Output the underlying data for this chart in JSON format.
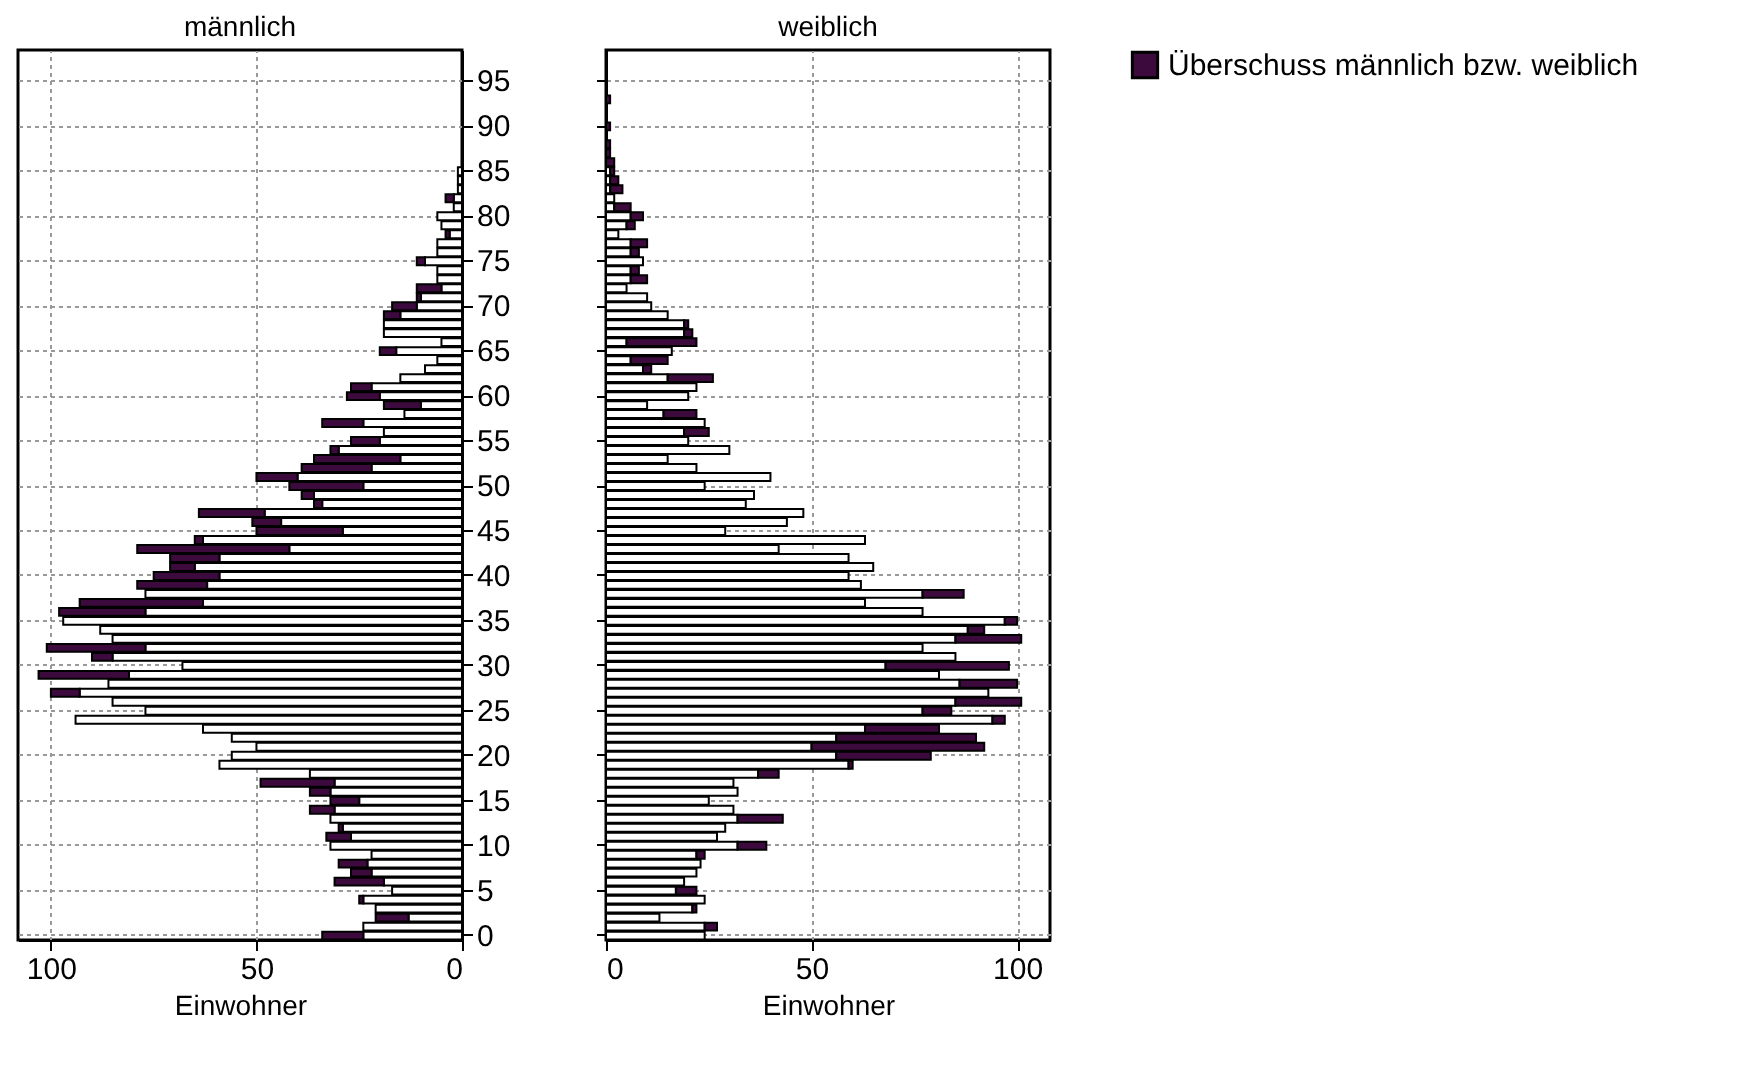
{
  "chart_data": [
    {
      "type": "bar",
      "orientation": "horizontal",
      "stacked": true,
      "title": "männlich",
      "xlabel": "Einwohner",
      "xlim": [
        108,
        0
      ],
      "xticks": [
        100,
        50,
        0
      ],
      "grid": true,
      "categories": [
        null,
        null,
        null,
        "95",
        null,
        null,
        null,
        null,
        "90",
        null,
        null,
        null,
        null,
        "85",
        null,
        null,
        null,
        null,
        "80",
        null,
        null,
        null,
        null,
        "75",
        null,
        null,
        null,
        null,
        "70",
        null,
        null,
        null,
        null,
        "65",
        null,
        null,
        null,
        null,
        "60",
        null,
        null,
        null,
        null,
        "55",
        null,
        null,
        null,
        null,
        "50",
        null,
        null,
        null,
        null,
        "45",
        null,
        null,
        null,
        null,
        "40",
        null,
        null,
        null,
        null,
        "35",
        null,
        null,
        null,
        null,
        "30",
        null,
        null,
        null,
        null,
        "25",
        null,
        null,
        null,
        null,
        "20",
        null,
        null,
        null,
        null,
        "15",
        null,
        null,
        null,
        null,
        "10",
        null,
        null,
        null,
        null,
        "5",
        null,
        null,
        null,
        null,
        "0"
      ],
      "series": [
        {
          "color": "#ffffff",
          "values": [
            null,
            null,
            null,
            null,
            null,
            null,
            null,
            null,
            null,
            null,
            null,
            null,
            null,
            1,
            1,
            1,
            2,
            2,
            6,
            5,
            3,
            6,
            6,
            9,
            6,
            6,
            5,
            10,
            11,
            15,
            19,
            19,
            5,
            16,
            6,
            9,
            15,
            22,
            20,
            10,
            14,
            24,
            19,
            20,
            30,
            15,
            22,
            40,
            24,
            36,
            34,
            48,
            44,
            29,
            63,
            42,
            59,
            65,
            59,
            62,
            77,
            63,
            77,
            97,
            88,
            85,
            77,
            85,
            68,
            81,
            86,
            93,
            85,
            77,
            94,
            63,
            56,
            50,
            56,
            59,
            37,
            31,
            32,
            25,
            31,
            32,
            29,
            27,
            32,
            22,
            23,
            22,
            19,
            17,
            24,
            21,
            13,
            24,
            24
          ]
        },
        {
          "color": "#3d0a3d",
          "values": [
            null,
            null,
            null,
            null,
            null,
            null,
            null,
            null,
            null,
            null,
            null,
            null,
            null,
            null,
            null,
            null,
            2,
            null,
            null,
            null,
            1,
            null,
            null,
            2,
            null,
            null,
            6,
            1,
            6,
            4,
            null,
            null,
            null,
            4,
            null,
            null,
            null,
            5,
            8,
            9,
            null,
            10,
            null,
            7,
            2,
            21,
            17,
            10,
            18,
            3,
            2,
            16,
            7,
            21,
            2,
            37,
            12,
            6,
            16,
            17,
            null,
            30,
            21,
            null,
            null,
            null,
            24,
            5,
            null,
            22,
            null,
            7,
            null,
            null,
            null,
            null,
            null,
            null,
            null,
            null,
            null,
            18,
            5,
            7,
            6,
            null,
            1,
            6,
            null,
            null,
            7,
            5,
            12,
            null,
            1,
            null,
            8,
            null,
            10
          ]
        }
      ]
    },
    {
      "type": "bar",
      "orientation": "horizontal",
      "stacked": true,
      "title": "weiblich",
      "xlabel": "Einwohner",
      "xlim": [
        0,
        108
      ],
      "xticks": [
        0,
        50,
        100
      ],
      "grid": true,
      "tick_labels": "x",
      "legend": "right",
      "categories": [
        null,
        null,
        null,
        "95",
        null,
        null,
        null,
        null,
        "90",
        null,
        null,
        null,
        null,
        "85",
        null,
        null,
        null,
        null,
        "80",
        null,
        null,
        null,
        null,
        "75",
        null,
        null,
        null,
        null,
        "70",
        null,
        null,
        null,
        null,
        "65",
        null,
        null,
        null,
        null,
        "60",
        null,
        null,
        null,
        null,
        "55",
        null,
        null,
        null,
        null,
        "50",
        null,
        null,
        null,
        null,
        "45",
        null,
        null,
        null,
        null,
        "40",
        null,
        null,
        null,
        null,
        "35",
        null,
        null,
        null,
        null,
        "30",
        null,
        null,
        null,
        null,
        "25",
        null,
        null,
        null,
        null,
        "20",
        null,
        null,
        null,
        null,
        "15",
        null,
        null,
        null,
        null,
        "10",
        null,
        null,
        null,
        null,
        "5",
        null,
        null,
        null,
        null,
        "0"
      ],
      "series": [
        {
          "color": "#ffffff",
          "values": [
            null,
            null,
            null,
            null,
            null,
            null,
            null,
            null,
            null,
            null,
            null,
            null,
            null,
            1,
            1,
            1,
            2,
            2,
            6,
            5,
            3,
            6,
            6,
            9,
            6,
            6,
            5,
            10,
            11,
            15,
            19,
            19,
            5,
            16,
            6,
            9,
            15,
            22,
            20,
            10,
            14,
            24,
            19,
            20,
            30,
            15,
            22,
            40,
            24,
            36,
            34,
            48,
            44,
            29,
            63,
            42,
            59,
            65,
            59,
            62,
            77,
            63,
            77,
            97,
            88,
            85,
            77,
            85,
            68,
            81,
            86,
            93,
            85,
            77,
            94,
            63,
            56,
            50,
            56,
            59,
            37,
            31,
            32,
            25,
            31,
            32,
            29,
            27,
            32,
            22,
            23,
            22,
            19,
            17,
            24,
            21,
            13,
            24,
            24
          ]
        },
        {
          "name": "Überschuss männlich bzw. weiblich",
          "color": "#3d0a3d",
          "values": [
            null,
            null,
            null,
            null,
            null,
            1,
            null,
            null,
            1,
            null,
            1,
            1,
            2,
            1,
            2,
            3,
            null,
            4,
            3,
            2,
            null,
            4,
            2,
            null,
            2,
            4,
            null,
            null,
            null,
            null,
            1,
            2,
            17,
            null,
            9,
            2,
            11,
            null,
            null,
            null,
            8,
            null,
            6,
            null,
            null,
            null,
            null,
            null,
            null,
            null,
            null,
            null,
            null,
            null,
            null,
            null,
            null,
            null,
            null,
            null,
            10,
            null,
            null,
            3,
            4,
            16,
            null,
            null,
            30,
            null,
            14,
            null,
            16,
            7,
            3,
            18,
            34,
            42,
            23,
            1,
            5,
            null,
            null,
            null,
            null,
            11,
            null,
            null,
            7,
            2,
            null,
            null,
            null,
            5,
            null,
            1,
            null,
            3,
            null
          ]
        }
      ]
    }
  ]
}
